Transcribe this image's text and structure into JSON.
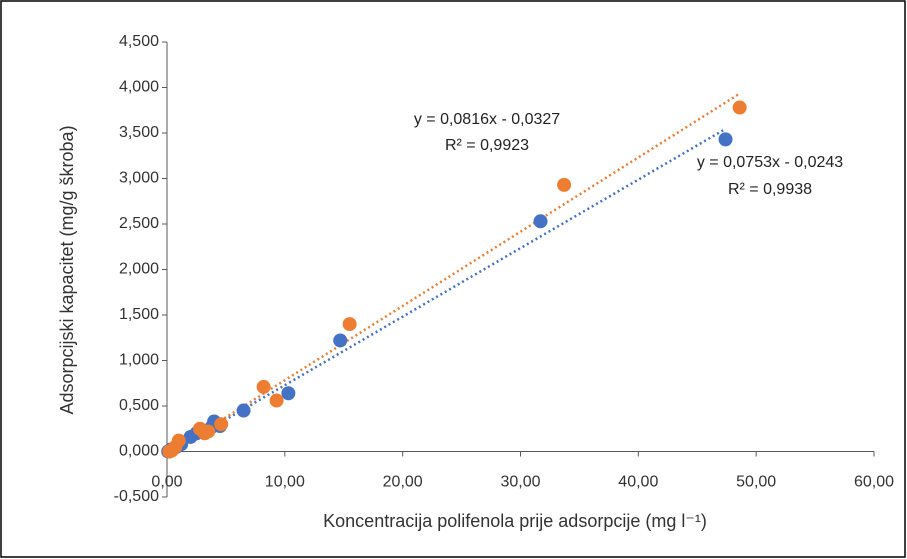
{
  "chart_data": {
    "type": "scatter",
    "x_label": "Koncentracija polifenola prije adsorpcije (mg l⁻¹)",
    "y_label": "Adsorpcijski kapacitet (mg/g škroba)",
    "xlim": [
      0,
      60
    ],
    "xticks": [
      {
        "value": 0,
        "label": "0,00"
      },
      {
        "value": 10,
        "label": "10,00"
      },
      {
        "value": 20,
        "label": "20,00"
      },
      {
        "value": 30,
        "label": "30,00"
      },
      {
        "value": 40,
        "label": "40,00"
      },
      {
        "value": 50,
        "label": "50,00"
      },
      {
        "value": 60,
        "label": "60,00"
      }
    ],
    "ylim": [
      -0.5,
      4.5
    ],
    "yticks": [
      {
        "value": -0.5,
        "label": "-0,500"
      },
      {
        "value": 0,
        "label": "0,000"
      },
      {
        "value": 0.5,
        "label": "0,500"
      },
      {
        "value": 1,
        "label": "1,000"
      },
      {
        "value": 1.5,
        "label": "1,500"
      },
      {
        "value": 2,
        "label": "2,000"
      },
      {
        "value": 2.5,
        "label": "2,500"
      },
      {
        "value": 3,
        "label": "3,000"
      },
      {
        "value": 3.5,
        "label": "3,500"
      },
      {
        "value": 4,
        "label": "4,000"
      },
      {
        "value": 4.5,
        "label": "4,500"
      }
    ],
    "grid": false,
    "series": [
      {
        "color": "#4472c4",
        "x": [
          47.4,
          31.7,
          14.7,
          10.3,
          6.5,
          4.5,
          4.0,
          3.8,
          2.5,
          2.0,
          1.2,
          0.8,
          0.3,
          0.1
        ],
        "values": [
          3.43,
          2.53,
          1.22,
          0.64,
          0.45,
          0.28,
          0.33,
          0.27,
          0.2,
          0.16,
          0.08,
          0.05,
          0.02,
          0.0
        ],
        "trendline": {
          "slope": 0.0753,
          "intercept": -0.0243,
          "equation": "y = 0,0753x - 0,0243",
          "r2": "R² = 0,9938"
        }
      },
      {
        "color": "#ed7d31",
        "x": [
          48.6,
          33.7,
          15.5,
          8.2,
          9.3,
          4.6,
          3.5,
          3.2,
          2.8,
          1.0,
          0.7,
          0.4,
          0.2
        ],
        "values": [
          3.78,
          2.93,
          1.4,
          0.71,
          0.56,
          0.3,
          0.22,
          0.2,
          0.25,
          0.12,
          0.05,
          0.01,
          0.0
        ],
        "trendline": {
          "slope": 0.0816,
          "intercept": -0.0327,
          "equation": "y = 0,0816x - 0,0327",
          "r2": "R² = 0,9923"
        }
      }
    ]
  }
}
